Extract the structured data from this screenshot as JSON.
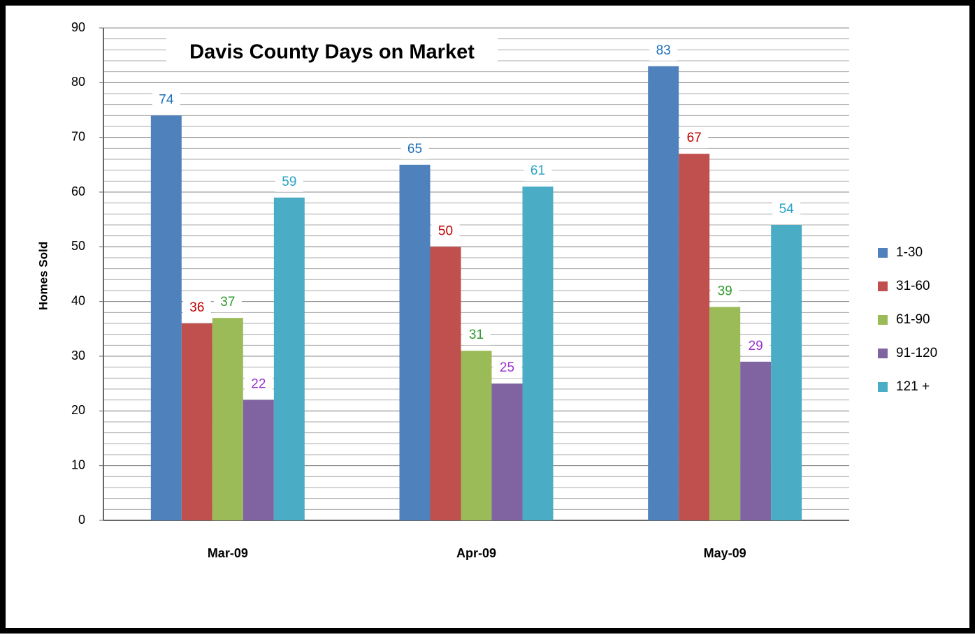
{
  "chart_data": {
    "type": "bar",
    "title": "Davis County Days on Market",
    "y_label": "Homes Sold",
    "categories": [
      "Mar-09",
      "Apr-09",
      "May-09"
    ],
    "series": [
      {
        "name": "1-30",
        "color": "#4f81bd",
        "label_color": "#1f6fb8",
        "values": [
          74,
          65,
          83
        ]
      },
      {
        "name": "31-60",
        "color": "#c0504d",
        "label_color": "#c00000",
        "values": [
          36,
          50,
          67
        ]
      },
      {
        "name": "61-90",
        "color": "#9bbb59",
        "label_color": "#2e9a2e",
        "values": [
          37,
          31,
          39
        ]
      },
      {
        "name": "91-120",
        "color": "#8064a2",
        "label_color": "#9933cc",
        "values": [
          22,
          25,
          29
        ]
      },
      {
        "name": "121 +",
        "color": "#4bacc6",
        "label_color": "#2aa3c8",
        "values": [
          59,
          61,
          54
        ]
      }
    ],
    "ylim": [
      0,
      90
    ],
    "yticks": [
      0,
      10,
      20,
      30,
      40,
      50,
      60,
      70,
      80,
      90
    ],
    "grid": true,
    "minor_grid": 2,
    "legend": "right"
  }
}
